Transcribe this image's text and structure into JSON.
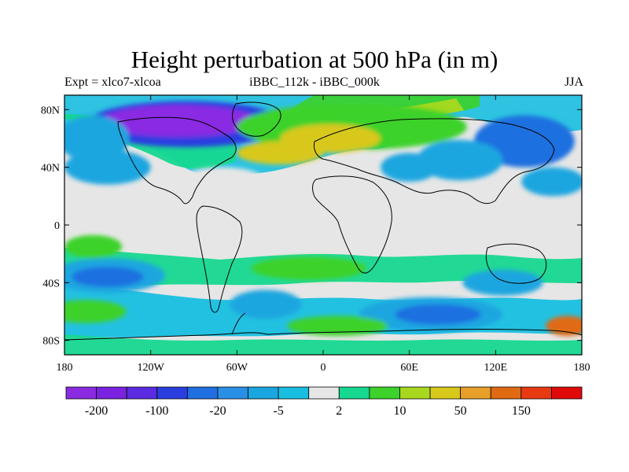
{
  "title": "Height perturbation at 500 hPa (in m)",
  "subtitle_left": "Expt = xlco7-xlcoa",
  "subtitle_center": "iBBC_112k - iBBC_000k",
  "subtitle_right": "JJA",
  "lat_ticks": [
    {
      "value": 80,
      "label": "80N"
    },
    {
      "value": 40,
      "label": "40N"
    },
    {
      "value": 0,
      "label": "0"
    },
    {
      "value": -40,
      "label": "40S"
    },
    {
      "value": -80,
      "label": "80S"
    }
  ],
  "lon_ticks": [
    {
      "value": -180,
      "label": "180"
    },
    {
      "value": -120,
      "label": "120W"
    },
    {
      "value": -60,
      "label": "60W"
    },
    {
      "value": 0,
      "label": "0"
    },
    {
      "value": 60,
      "label": "60E"
    },
    {
      "value": 120,
      "label": "120E"
    },
    {
      "value": 180,
      "label": "180"
    }
  ],
  "map_extent": {
    "lon": [
      -180,
      180
    ],
    "lat": [
      -90,
      90
    ]
  },
  "colorbar": {
    "colors": [
      "#8a2be2",
      "#7a22e0",
      "#5a2be0",
      "#2a3ee0",
      "#1f6fe0",
      "#2a8fe6",
      "#1aa6e0",
      "#18bfe0",
      "#e6e6e6",
      "#16d890",
      "#3cd22a",
      "#a8d81e",
      "#d8c81a",
      "#e8a02a",
      "#e06a12",
      "#e83a12",
      "#e00a0a"
    ],
    "labels": [
      {
        "after_box": 1,
        "text": "-200"
      },
      {
        "after_box": 3,
        "text": "-100"
      },
      {
        "after_box": 5,
        "text": "-20"
      },
      {
        "after_box": 7,
        "text": "-5"
      },
      {
        "after_box": 9,
        "text": "2"
      },
      {
        "after_box": 11,
        "text": "10"
      },
      {
        "after_box": 13,
        "text": "50"
      },
      {
        "after_box": 15,
        "text": "150"
      }
    ]
  },
  "field_blobs": [
    {
      "lon": -95,
      "lat": 70,
      "rx": 70,
      "ry": 16,
      "level": "-100"
    },
    {
      "lon": -100,
      "lat": 72,
      "rx": 55,
      "ry": 11,
      "level": "-200"
    },
    {
      "lon": 20,
      "lat": 68,
      "rx": 80,
      "ry": 16,
      "level": "10"
    },
    {
      "lon": 5,
      "lat": 60,
      "rx": 35,
      "ry": 10,
      "level": "50"
    },
    {
      "lon": -30,
      "lat": 50,
      "rx": 30,
      "ry": 8,
      "level": "50"
    },
    {
      "lon": 140,
      "lat": 58,
      "rx": 35,
      "ry": 18,
      "level": "-20"
    },
    {
      "lon": -160,
      "lat": 60,
      "rx": 25,
      "ry": 16,
      "level": "-5"
    },
    {
      "lon": -150,
      "lat": 40,
      "rx": 30,
      "ry": 12,
      "level": "-5"
    },
    {
      "lon": 60,
      "lat": 40,
      "rx": 20,
      "ry": 10,
      "level": "-5"
    },
    {
      "lon": 95,
      "lat": 45,
      "rx": 30,
      "ry": 14,
      "level": "-5"
    },
    {
      "lon": 160,
      "lat": 30,
      "rx": 22,
      "ry": 10,
      "level": "-5"
    },
    {
      "lon": -70,
      "lat": 30,
      "rx": 30,
      "ry": 10,
      "level": "2"
    },
    {
      "lon": -150,
      "lat": -35,
      "rx": 40,
      "ry": 12,
      "level": "-5"
    },
    {
      "lon": -150,
      "lat": -36,
      "rx": 25,
      "ry": 7,
      "level": "-20"
    },
    {
      "lon": -165,
      "lat": -60,
      "rx": 28,
      "ry": 8,
      "level": "10"
    },
    {
      "lon": -40,
      "lat": -55,
      "rx": 25,
      "ry": 10,
      "level": "-5"
    },
    {
      "lon": 75,
      "lat": -62,
      "rx": 50,
      "ry": 12,
      "level": "-5"
    },
    {
      "lon": 80,
      "lat": -62,
      "rx": 30,
      "ry": 7,
      "level": "-20"
    },
    {
      "lon": 125,
      "lat": -40,
      "rx": 28,
      "ry": 9,
      "level": "-5"
    },
    {
      "lon": -10,
      "lat": -30,
      "rx": 40,
      "ry": 8,
      "level": "10"
    },
    {
      "lon": 10,
      "lat": -70,
      "rx": 35,
      "ry": 7,
      "level": "10"
    },
    {
      "lon": 170,
      "lat": -70,
      "rx": 15,
      "ry": 7,
      "level": "150"
    },
    {
      "lon": -160,
      "lat": -15,
      "rx": 20,
      "ry": 8,
      "level": "10"
    }
  ]
}
